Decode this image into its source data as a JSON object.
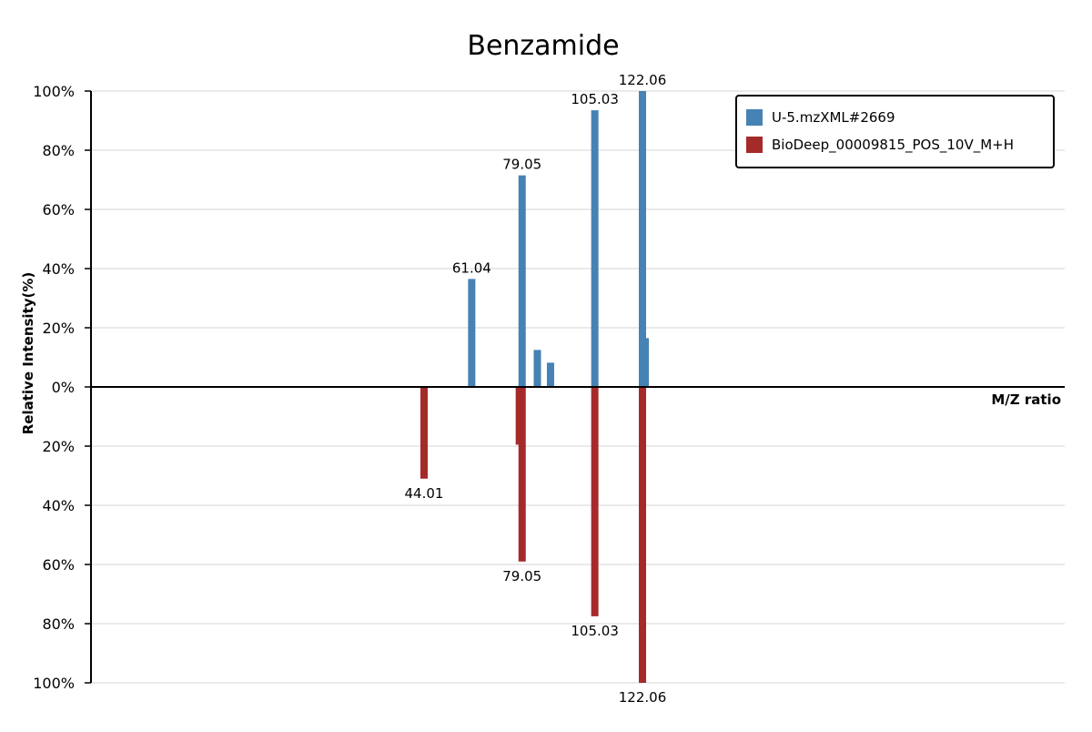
{
  "chart_data": {
    "type": "bar",
    "title": "Benzamide",
    "xlabel": "M/Z ratio",
    "ylabel": "Relative Intensity(%)",
    "y_ticks": [
      "100%",
      "80%",
      "60%",
      "40%",
      "20%",
      "0%",
      "20%",
      "40%",
      "60%",
      "80%",
      "100%"
    ],
    "ylim": [
      -100,
      100
    ],
    "grid": true,
    "legend_position": "top-right",
    "series": [
      {
        "name": "U-5.mzXML#2669",
        "color": "#4682b4",
        "direction": "up",
        "peaks": [
          {
            "mz": 61.04,
            "intensity": 36.5,
            "label": "61.04"
          },
          {
            "mz": 79.05,
            "intensity": 71.5,
            "label": "79.05"
          },
          {
            "mz": 84.5,
            "intensity": 12.5,
            "label": ""
          },
          {
            "mz": 89.2,
            "intensity": 8.2,
            "label": ""
          },
          {
            "mz": 105.03,
            "intensity": 93.5,
            "label": "105.03"
          },
          {
            "mz": 122.06,
            "intensity": 100,
            "label": "122.06"
          },
          {
            "mz": 123.06,
            "intensity": 16.5,
            "label": ""
          }
        ]
      },
      {
        "name": "BioDeep_00009815_POS_10V_M+H",
        "color": "#a52a2a",
        "direction": "down",
        "peaks": [
          {
            "mz": 44.01,
            "intensity": 31,
            "label": "44.01"
          },
          {
            "mz": 78.05,
            "intensity": 19.5,
            "label": ""
          },
          {
            "mz": 79.05,
            "intensity": 59,
            "label": "79.05"
          },
          {
            "mz": 105.03,
            "intensity": 77.5,
            "label": "105.03"
          },
          {
            "mz": 122.06,
            "intensity": 100,
            "label": "122.06"
          }
        ]
      }
    ]
  }
}
